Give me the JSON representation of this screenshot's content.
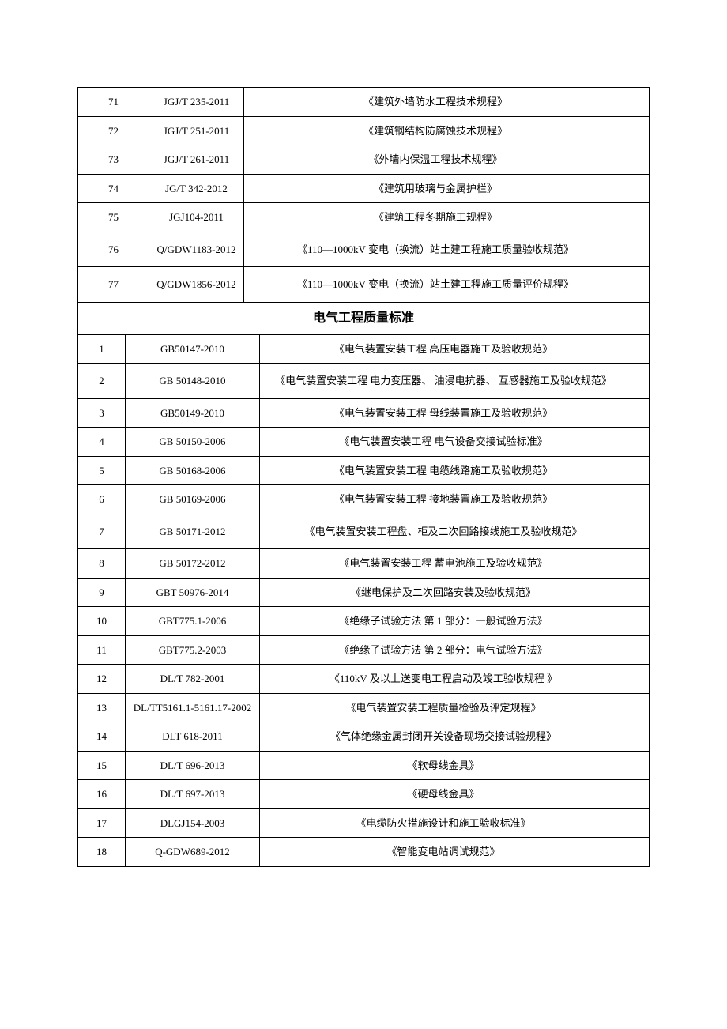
{
  "tablesA": [
    {
      "num": "71",
      "code": "JGJ/T 235-2011",
      "title": "《建筑外墙防水工程技术规程》"
    },
    {
      "num": "72",
      "code": "JGJ/T 251-2011",
      "title": "《建筑钢结构防腐蚀技术规程》"
    },
    {
      "num": "73",
      "code": "JGJ/T 261-2011",
      "title": "《外墙内保温工程技术规程》"
    },
    {
      "num": "74",
      "code": "JG/T 342-2012",
      "title": "《建筑用玻璃与金属护栏》"
    },
    {
      "num": "75",
      "code": "JGJ104-2011",
      "title": "《建筑工程冬期施工规程》"
    },
    {
      "num": "76",
      "code": "Q/GDW1183-2012",
      "title": "《110—1000kV 变电（换流）站土建工程施工质量验收规范》",
      "tall": true
    },
    {
      "num": "77",
      "code": "Q/GDW1856-2012",
      "title": "《110—1000kV 变电（换流）站土建工程施工质量评价规程》",
      "tall": true
    }
  ],
  "sectionHeader": "电气工程质量标准",
  "tablesB": [
    {
      "num": "1",
      "code": "GB50147-2010",
      "title": "《电气装置安装工程 高压电器施工及验收规范》"
    },
    {
      "num": "2",
      "code": "GB 50148-2010",
      "title": "《电气装置安装工程 电力变压器、 油浸电抗器、 互感器施工及验收规范》",
      "tall": true
    },
    {
      "num": "3",
      "code": "GB50149-2010",
      "title": "《电气装置安装工程 母线装置施工及验收规范》"
    },
    {
      "num": "4",
      "code": "GB 50150-2006",
      "title": "《电气装置安装工程 电气设备交接试验标准》"
    },
    {
      "num": "5",
      "code": "GB 50168-2006",
      "title": "《电气装置安装工程 电缆线路施工及验收规范》"
    },
    {
      "num": "6",
      "code": "GB 50169-2006",
      "title": "《电气装置安装工程 接地装置施工及验收规范》"
    },
    {
      "num": "7",
      "code": "GB 50171-2012",
      "title": "《电气装置安装工程盘、柜及二次回路接线施工及验收规范》",
      "tall": true
    },
    {
      "num": "8",
      "code": "GB 50172-2012",
      "title": "《电气装置安装工程 蓄电池施工及验收规范》"
    },
    {
      "num": "9",
      "code": "GBT 50976-2014",
      "title": "《继电保护及二次回路安装及验收规范》"
    },
    {
      "num": "10",
      "code": "GBT775.1-2006",
      "title": "《绝缘子试验方法 第 1 部分：一般试验方法》"
    },
    {
      "num": "11",
      "code": "GBT775.2-2003",
      "title": "《绝缘子试验方法 第 2 部分：电气试验方法》"
    },
    {
      "num": "12",
      "code": "DL/T 782-2001",
      "title": "《110kV 及以上送变电工程启动及竣工验收规程 》"
    },
    {
      "num": "13",
      "code": "DL/TT5161.1-5161.17-2002",
      "title": "《电气装置安装工程质量检验及评定规程》"
    },
    {
      "num": "14",
      "code": "DLT 618-2011",
      "title": "《气体绝缘金属封闭开关设备现场交接试验规程》"
    },
    {
      "num": "15",
      "code": "DL/T 696-2013",
      "title": "《软母线金具》"
    },
    {
      "num": "16",
      "code": "DL/T 697-2013",
      "title": "《硬母线金具》"
    },
    {
      "num": "17",
      "code": "DLGJ154-2003",
      "title": "《电缆防火措施设计和施工验收标准》"
    },
    {
      "num": "18",
      "code": "Q-GDW689-2012",
      "title": "《智能变电站调试规范》"
    }
  ]
}
